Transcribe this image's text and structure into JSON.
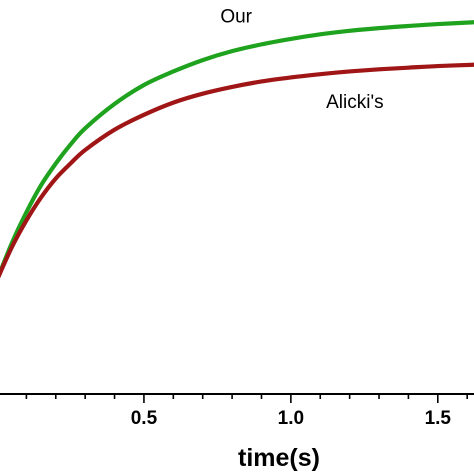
{
  "chart_data": {
    "type": "line",
    "title": "",
    "xlabel": "time(s)",
    "ylabel": "",
    "xlim": [
      0.0,
      1.63
    ],
    "x_ticks": [
      {
        "value": 0.5,
        "label": "0.5"
      },
      {
        "value": 1.0,
        "label": "1.0"
      },
      {
        "value": 1.5,
        "label": "1.5"
      }
    ],
    "x_minor_step": 0.1,
    "grid": false,
    "legend": "none (series labelled by in-plot annotations)",
    "series": [
      {
        "name": "Our",
        "color": "#1fa31f",
        "x": [
          0.0,
          0.05,
          0.1,
          0.15,
          0.2,
          0.25,
          0.3,
          0.4,
          0.5,
          0.6,
          0.7,
          0.8,
          0.9,
          1.0,
          1.1,
          1.2,
          1.3,
          1.4,
          1.5,
          1.63
        ],
        "y": [
          0.78,
          0.915,
          1.03,
          1.13,
          1.21,
          1.28,
          1.34,
          1.43,
          1.5,
          1.55,
          1.592,
          1.625,
          1.65,
          1.67,
          1.687,
          1.7,
          1.71,
          1.718,
          1.725,
          1.732
        ]
      },
      {
        "name": "Alicki's",
        "color": "#a01616",
        "x": [
          0.0,
          0.05,
          0.1,
          0.15,
          0.2,
          0.25,
          0.3,
          0.4,
          0.5,
          0.6,
          0.7,
          0.8,
          0.9,
          1.0,
          1.1,
          1.2,
          1.3,
          1.4,
          1.5,
          1.63
        ],
        "y": [
          0.78,
          0.9,
          1.0,
          1.085,
          1.155,
          1.21,
          1.26,
          1.335,
          1.39,
          1.435,
          1.468,
          1.493,
          1.513,
          1.528,
          1.54,
          1.55,
          1.558,
          1.564,
          1.57,
          1.575
        ]
      }
    ],
    "annotations": [
      {
        "text": "Our",
        "x": 0.76,
        "y": 1.73
      },
      {
        "text": "Alicki's",
        "x": 1.12,
        "y": 1.415
      }
    ]
  }
}
